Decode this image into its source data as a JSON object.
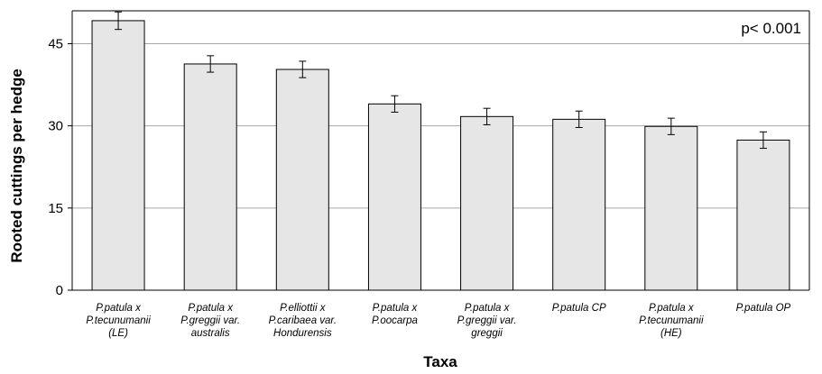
{
  "chart_data": {
    "type": "bar",
    "categories": [
      [
        "P.patula x",
        "P.tecunumanii",
        "(LE)"
      ],
      [
        "P.patula x",
        "P.greggii var.",
        "australis"
      ],
      [
        "P.elliottii x",
        "P.caribaea var.",
        "Hondurensis"
      ],
      [
        "P.patula x",
        "P.oocarpa"
      ],
      [
        "P.patula x",
        "P.greggii var.",
        "greggii"
      ],
      [
        "P.patula CP"
      ],
      [
        "P.patula x",
        "P.tecunumanii",
        "(HE)"
      ],
      [
        "P.patula OP"
      ]
    ],
    "values": [
      49.2,
      41.3,
      40.3,
      34.0,
      31.7,
      31.2,
      29.9,
      27.4
    ],
    "errors": [
      1.6,
      1.5,
      1.5,
      1.5,
      1.5,
      1.5,
      1.5,
      1.5
    ],
    "ylim": [
      0,
      51
    ],
    "yticks": [
      0,
      15,
      30,
      45
    ],
    "xlabel": "Taxa",
    "ylabel": "Rooted cuttings per hedge",
    "annotation": "p< 0.001",
    "grid": true,
    "colors": {
      "bar_fill": "#e6e6e6",
      "bar_stroke": "#000000",
      "grid": "#a6a6a6"
    }
  }
}
